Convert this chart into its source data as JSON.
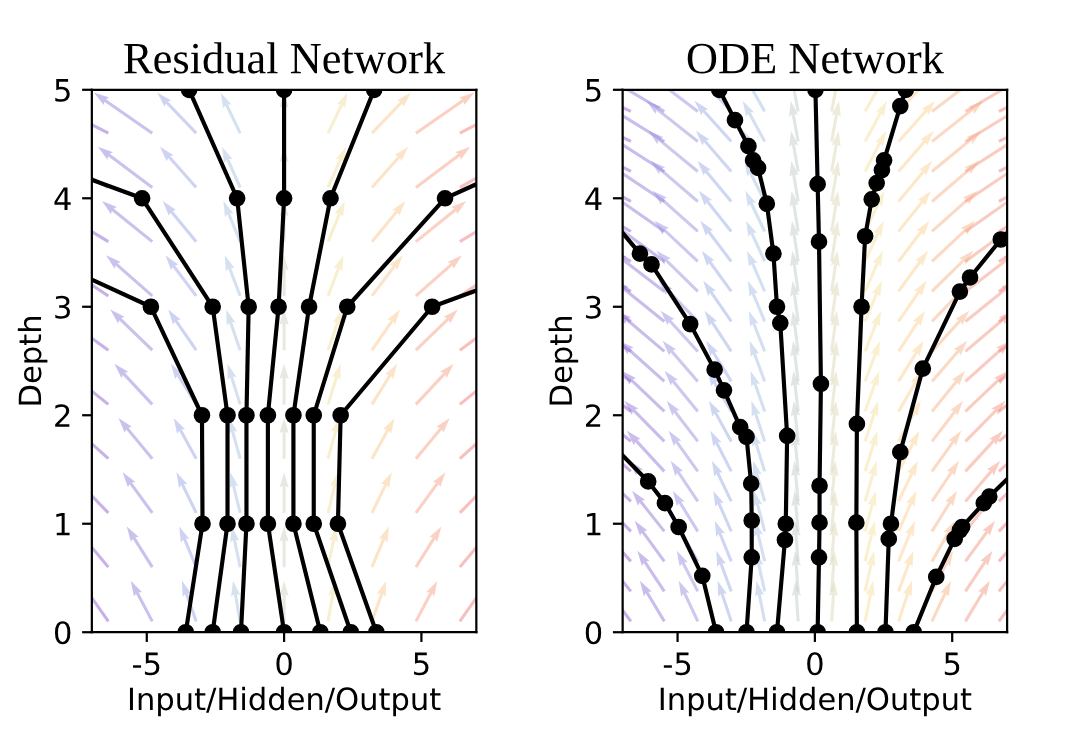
{
  "chart_data": [
    {
      "type": "line",
      "title": "Residual Network",
      "xlabel": "Input/Hidden/Output",
      "ylabel": "Depth",
      "xlim": [
        -7,
        7
      ],
      "xticks": [
        -5,
        0,
        5
      ],
      "ylim": [
        0,
        5
      ],
      "yticks": [
        0,
        1,
        2,
        3,
        4,
        5
      ],
      "marker": "circle",
      "line_style": "solid",
      "grid": false,
      "legend": false,
      "series": [
        {
          "color": "#000000",
          "x": [
            -3.58,
            -2.97,
            -2.99,
            -4.85,
            -7
          ],
          "values": [
            0,
            1,
            2,
            3,
            3.25
          ]
        },
        {
          "color": "#000000",
          "x": [
            -2.6,
            -2.06,
            -2.06,
            -2.6,
            -5.17,
            -7
          ],
          "values": [
            0,
            1,
            2,
            3,
            4,
            4.17
          ]
        },
        {
          "color": "#000000",
          "x": [
            -1.57,
            -1.37,
            -1.37,
            -1.29,
            -1.71,
            -3.46
          ],
          "values": [
            0,
            1,
            2,
            3,
            4,
            5
          ]
        },
        {
          "color": "#000000",
          "x": [
            0,
            -0.59,
            -0.59,
            -0.2,
            0,
            0
          ],
          "values": [
            0,
            1,
            2,
            3,
            4,
            5
          ]
        },
        {
          "color": "#000000",
          "x": [
            1.32,
            0.34,
            0.34,
            0.91,
            1.69,
            3.28
          ],
          "values": [
            0,
            1,
            2,
            3,
            4,
            5
          ]
        },
        {
          "color": "#000000",
          "x": [
            2.43,
            1.08,
            1.08,
            2.3,
            5.86,
            7
          ],
          "values": [
            0,
            1,
            2,
            3,
            4,
            4.13
          ]
        },
        {
          "color": "#000000",
          "x": [
            3.36,
            1.96,
            2.06,
            5.39,
            7
          ],
          "values": [
            0,
            1,
            2,
            3,
            3.15
          ]
        }
      ]
    },
    {
      "type": "line",
      "title": "ODE Network",
      "xlabel": "Input/Hidden/Output",
      "ylabel": "Depth",
      "xlim": [
        -7,
        7
      ],
      "xticks": [
        -5,
        0,
        5
      ],
      "ylim": [
        0,
        5
      ],
      "yticks": [
        0,
        1,
        2,
        3,
        4,
        5
      ],
      "marker": "circle",
      "line_style": "solid",
      "grid": false,
      "legend": false,
      "series": [
        {
          "color": "#000000",
          "x": [
            -3.6,
            -4.1,
            -4.96,
            -5.46,
            -6.07,
            -7
          ],
          "values": [
            0,
            0.52,
            0.97,
            1.19,
            1.39,
            1.63
          ]
        },
        {
          "color": "#000000",
          "x": [
            -2.49,
            -2.3,
            -2.3,
            -2.32,
            -2.49,
            -2.72,
            -3.31,
            -3.65,
            -4.54,
            -5.95,
            -6.37,
            -7
          ],
          "values": [
            0,
            0.69,
            1.03,
            1.37,
            1.8,
            1.89,
            2.23,
            2.42,
            2.84,
            3.39,
            3.49,
            3.68
          ]
        },
        {
          "color": "#000000",
          "x": [
            -1.38,
            -1.09,
            -1.06,
            -1.01,
            -1.26,
            -1.38,
            -1.51,
            -1.75,
            -2.07,
            -2.25,
            -2.42,
            -2.91,
            -3.48
          ],
          "values": [
            0,
            0.85,
            1.0,
            1.81,
            2.85,
            3.0,
            3.49,
            3.95,
            4.28,
            4.35,
            4.48,
            4.72,
            5.0
          ]
        },
        {
          "color": "#000000",
          "x": [
            0.1,
            0.15,
            0.17,
            0.17,
            0.22,
            0.15,
            0.1,
            0.02
          ],
          "values": [
            0,
            0.69,
            1.01,
            1.35,
            2.29,
            3.6,
            4.13,
            5.0
          ]
        },
        {
          "color": "#000000",
          "x": [
            1.53,
            1.51,
            1.53,
            1.7,
            1.83,
            2.07,
            2.25,
            2.44,
            2.52,
            3.11,
            3.31
          ],
          "values": [
            0,
            1.01,
            1.92,
            3.0,
            3.65,
            3.99,
            4.14,
            4.26,
            4.35,
            4.85,
            5.0
          ]
        },
        {
          "color": "#000000",
          "x": [
            2.57,
            2.69,
            2.77,
            3.11,
            3.93,
            5.28,
            5.65,
            6.77,
            7
          ],
          "values": [
            0,
            0.86,
            1.0,
            1.66,
            2.43,
            3.14,
            3.27,
            3.62,
            3.68
          ]
        },
        {
          "color": "#000000",
          "x": [
            3.6,
            4.42,
            5.09,
            5.28,
            5.36,
            6.15,
            6.35,
            7
          ],
          "values": [
            0,
            0.51,
            0.86,
            0.94,
            0.97,
            1.19,
            1.25,
            1.41
          ]
        }
      ]
    }
  ]
}
